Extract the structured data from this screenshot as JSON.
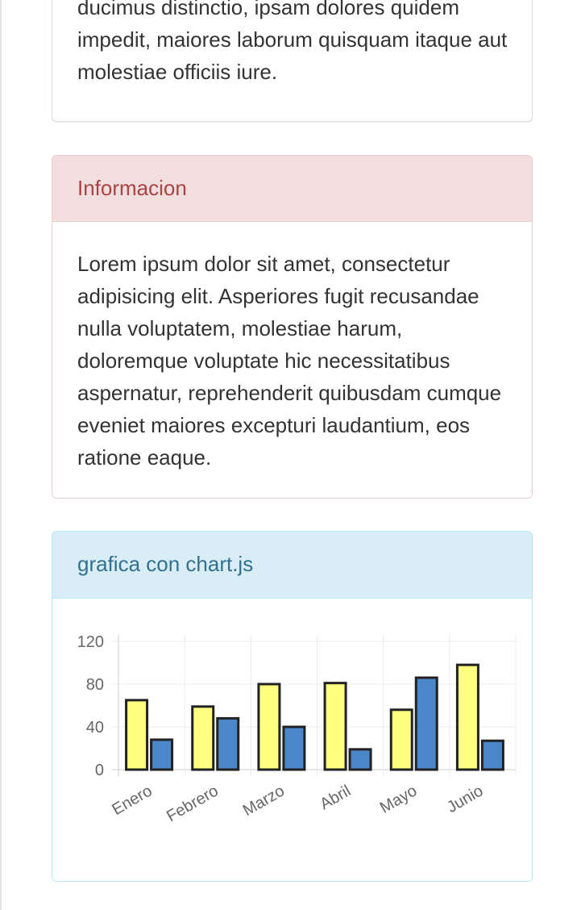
{
  "top_panel": {
    "text": "ducimus distinctio, ipsam dolores quidem impedit, maiores laborum quisquam itaque aut molestiae officiis iure."
  },
  "info_panel": {
    "title": "Informacion",
    "text": "Lorem ipsum dolor sit amet, consectetur adipisicing elit. Asperiores fugit recusandae nulla voluptatem, molestiae harum, doloremque voluptate hic necessitatibus aspernatur, reprehenderit quibusdam cumque eveniet maiores excepturi laudantium, eos ratione eaque."
  },
  "chart_panel": {
    "title": "grafica con chart.js"
  },
  "colors": {
    "danger_bg": "#f2dede",
    "danger_text": "#a94442",
    "info_bg": "#d9edf7",
    "info_text": "#31708f",
    "series_a": "#ffff80",
    "series_b": "#4a86c8",
    "bar_border": "#222222"
  },
  "chart_data": {
    "type": "bar",
    "categories": [
      "Enero",
      "Febrero",
      "Marzo",
      "Abril",
      "Mayo",
      "Junio"
    ],
    "series": [
      {
        "values": [
          65,
          59,
          80,
          81,
          56,
          98
        ],
        "color": "#ffff80"
      },
      {
        "values": [
          28,
          48,
          40,
          19,
          86,
          27
        ],
        "color": "#4a86c8"
      }
    ],
    "yticks": [
      0,
      40,
      80,
      120
    ],
    "ylim": [
      0,
      120
    ],
    "grid": true,
    "title": "",
    "xlabel": "",
    "ylabel": ""
  }
}
